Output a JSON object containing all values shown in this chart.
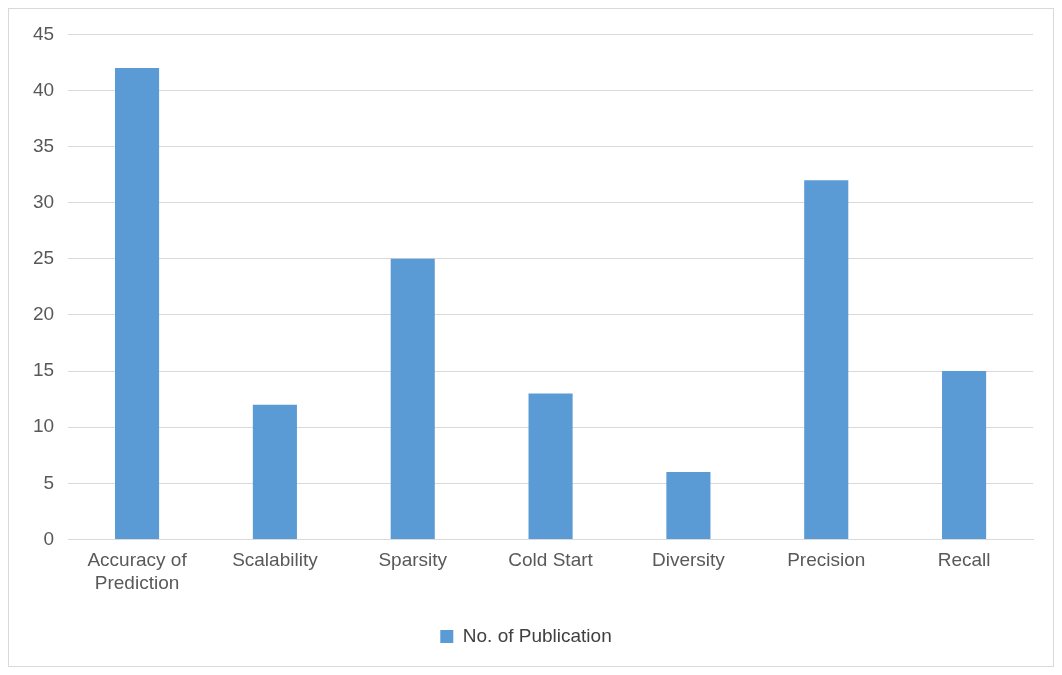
{
  "chart_data": {
    "type": "bar",
    "categories": [
      "Accuracy of Prediction",
      "Scalability",
      "Sparsity",
      "Cold Start",
      "Diversity",
      "Precision",
      "Recall"
    ],
    "series": [
      {
        "name": "No. of Publication",
        "color": "#5b9bd5",
        "values": [
          42,
          12,
          25,
          13,
          6,
          32,
          15
        ]
      }
    ],
    "ylim": [
      0,
      45
    ],
    "yticks": [
      0,
      5,
      10,
      15,
      20,
      25,
      30,
      35,
      40,
      45
    ],
    "grid": "y",
    "legend": "bottom"
  }
}
